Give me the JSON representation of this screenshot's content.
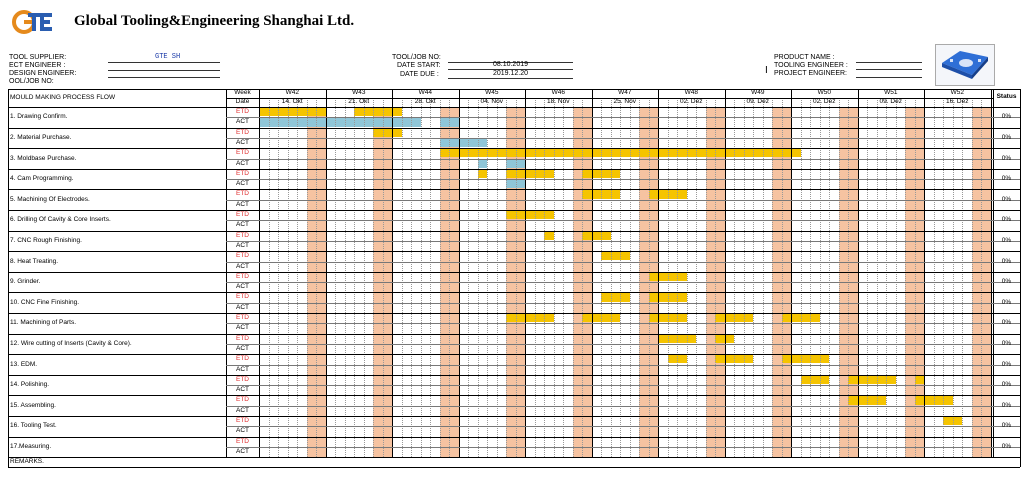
{
  "company": {
    "name": "Global Tooling&Engineering Shanghai Ltd.",
    "logo_text": "GTE"
  },
  "info": {
    "tool_supplier_label": "TOOL SUPPLIER:",
    "tool_supplier_value": "GTE SH",
    "ect_engineer_label": "ECT ENGINEER :",
    "design_engineer_label": "DESIGN ENGINEER:",
    "tool_job_no_label_left": "OOL/JOB NO:",
    "tool_job_no_label": "TOOL/JOB NO:",
    "date_start_label": "DATE START:",
    "date_start_value": "08.10.2019",
    "date_due_label": "DATE DUE :",
    "date_due_value": "2019.12.20",
    "product_name_label": "PRODUCT NAME :",
    "tooling_engineer_label": "TOOLING ENGINEER :",
    "project_engineer_label": "PROJECT ENGINEER:"
  },
  "table": {
    "heading": "MOULD MAKING PROCESS FLOW",
    "week_label": "Week",
    "date_label": "Date",
    "status_label": "Status",
    "weeks": [
      {
        "w": "W42",
        "d": "14. Okt"
      },
      {
        "w": "W43",
        "d": "21. Okt"
      },
      {
        "w": "W44",
        "d": "28. Okt"
      },
      {
        "w": "W45",
        "d": "04. Nov"
      },
      {
        "w": "W46",
        "d": "18. Nov"
      },
      {
        "w": "W47",
        "d": "25. Nov"
      },
      {
        "w": "W48",
        "d": "02. Dez"
      },
      {
        "w": "W49",
        "d": "09. Dez"
      },
      {
        "w": "W50",
        "d": "02. Dez"
      },
      {
        "w": "W51",
        "d": "09. Dez"
      },
      {
        "w": "W52",
        "d": "16. Dez"
      }
    ],
    "etd_label": "ETD",
    "act_label": "ACT",
    "status_value": "0%",
    "tasks": [
      {
        "name": "1. Drawing Confirm.",
        "etd": [
          [
            0,
            7
          ],
          [
            10,
            15
          ]
        ],
        "act": [
          [
            0,
            17
          ],
          [
            19,
            21
          ]
        ]
      },
      {
        "name": "2. Material Purchase.",
        "etd": [
          [
            12,
            15
          ]
        ],
        "act": [
          [
            19,
            24
          ]
        ]
      },
      {
        "name": "3. Moldbase Purchase.",
        "etd": [
          [
            19,
            57
          ]
        ],
        "act": [
          [
            23,
            24
          ],
          [
            26,
            28
          ]
        ]
      },
      {
        "name": "4. Cam Programming.",
        "etd": [
          [
            23,
            24
          ],
          [
            26,
            31
          ],
          [
            34,
            38
          ]
        ],
        "act": [
          [
            26,
            28
          ]
        ]
      },
      {
        "name": "5. Machining Of Electrodes.",
        "etd": [
          [
            34,
            38
          ],
          [
            41,
            45
          ]
        ],
        "act": []
      },
      {
        "name": "6. Drilling Of Cavity & Core Inserts.",
        "etd": [
          [
            26,
            31
          ]
        ],
        "act": []
      },
      {
        "name": "7. CNC Rough Finishing.",
        "etd": [
          [
            30,
            31
          ],
          [
            34,
            37
          ]
        ],
        "act": []
      },
      {
        "name": "8. Heat Treating.",
        "etd": [
          [
            36,
            39
          ]
        ],
        "act": []
      },
      {
        "name": "9. Grinder.",
        "etd": [
          [
            41,
            45
          ]
        ],
        "act": []
      },
      {
        "name": "10. CNC Fine Finishing.",
        "etd": [
          [
            36,
            39
          ],
          [
            41,
            45
          ]
        ],
        "act": []
      },
      {
        "name": "11. Machining of Parts.",
        "etd": [
          [
            26,
            31
          ],
          [
            34,
            38
          ],
          [
            41,
            45
          ],
          [
            48,
            52
          ],
          [
            55,
            59
          ]
        ],
        "act": []
      },
      {
        "name": "12. Wire cutting of Inserts (Cavity & Core).",
        "etd": [
          [
            42,
            46
          ],
          [
            48,
            50
          ]
        ],
        "act": []
      },
      {
        "name": "13. EDM.",
        "etd": [
          [
            43,
            45
          ],
          [
            48,
            52
          ],
          [
            55,
            60
          ]
        ],
        "act": []
      },
      {
        "name": "14. Polishing.",
        "etd": [
          [
            57,
            60
          ],
          [
            62,
            67
          ],
          [
            69,
            70
          ]
        ],
        "act": []
      },
      {
        "name": "15. Assembling.",
        "etd": [
          [
            62,
            66
          ],
          [
            69,
            73
          ]
        ],
        "act": []
      },
      {
        "name": "16. Tooling Test.",
        "etd": [
          [
            72,
            74
          ]
        ],
        "act": []
      },
      {
        "name": "17.Measuring.",
        "etd": [],
        "act": []
      }
    ],
    "remarks_label": "REMARKS."
  },
  "colors": {
    "weekend": "#f6c3a1",
    "etd_bar": "#f5c400",
    "act_bar": "#8fc6d8",
    "etd_text": "#e03030"
  }
}
